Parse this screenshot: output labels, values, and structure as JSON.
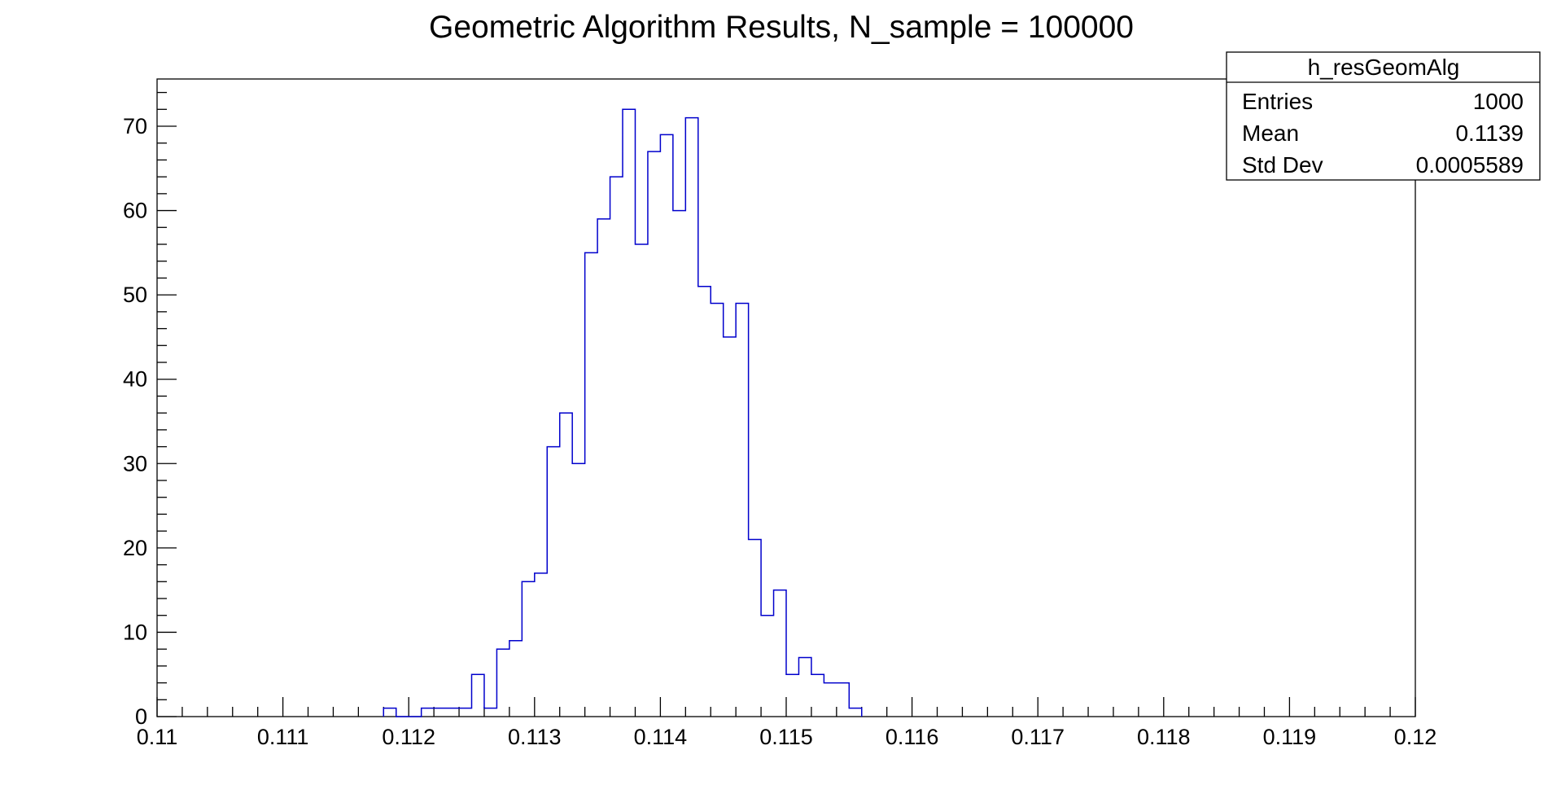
{
  "chart_data": {
    "type": "histogram",
    "title": "Geometric Algorithm Results, N_sample = 100000",
    "xlim": [
      0.11,
      0.12
    ],
    "ylim": [
      0,
      75.6
    ],
    "bin_width": 0.0001,
    "xticks": [
      "0.11",
      "0.111",
      "0.112",
      "0.113",
      "0.114",
      "0.115",
      "0.116",
      "0.117",
      "0.118",
      "0.119",
      "0.12"
    ],
    "yticks": [
      "0",
      "10",
      "20",
      "30",
      "40",
      "50",
      "60",
      "70"
    ],
    "bins": [
      {
        "x": 0.1118,
        "count": 1
      },
      {
        "x": 0.1119,
        "count": 0
      },
      {
        "x": 0.112,
        "count": 0
      },
      {
        "x": 0.1121,
        "count": 1
      },
      {
        "x": 0.1122,
        "count": 1
      },
      {
        "x": 0.1123,
        "count": 1
      },
      {
        "x": 0.1124,
        "count": 1
      },
      {
        "x": 0.1125,
        "count": 5
      },
      {
        "x": 0.1126,
        "count": 1
      },
      {
        "x": 0.1127,
        "count": 8
      },
      {
        "x": 0.1128,
        "count": 9
      },
      {
        "x": 0.1129,
        "count": 16
      },
      {
        "x": 0.113,
        "count": 17
      },
      {
        "x": 0.1131,
        "count": 32
      },
      {
        "x": 0.1132,
        "count": 36
      },
      {
        "x": 0.1133,
        "count": 30
      },
      {
        "x": 0.1134,
        "count": 55
      },
      {
        "x": 0.1135,
        "count": 59
      },
      {
        "x": 0.1136,
        "count": 64
      },
      {
        "x": 0.1137,
        "count": 72
      },
      {
        "x": 0.1138,
        "count": 56
      },
      {
        "x": 0.1139,
        "count": 67
      },
      {
        "x": 0.114,
        "count": 69
      },
      {
        "x": 0.1141,
        "count": 60
      },
      {
        "x": 0.1142,
        "count": 71
      },
      {
        "x": 0.1143,
        "count": 51
      },
      {
        "x": 0.1144,
        "count": 49
      },
      {
        "x": 0.1145,
        "count": 45
      },
      {
        "x": 0.1146,
        "count": 49
      },
      {
        "x": 0.1147,
        "count": 21
      },
      {
        "x": 0.1148,
        "count": 12
      },
      {
        "x": 0.1149,
        "count": 15
      },
      {
        "x": 0.115,
        "count": 5
      },
      {
        "x": 0.1151,
        "count": 7
      },
      {
        "x": 0.1152,
        "count": 5
      },
      {
        "x": 0.1153,
        "count": 4
      },
      {
        "x": 0.1154,
        "count": 4
      },
      {
        "x": 0.1155,
        "count": 1
      }
    ],
    "series_color": "#0000cc",
    "stats_box": {
      "name": "h_resGeomAlg",
      "placement": "top-right",
      "rows": [
        {
          "label": "Entries",
          "value": "1000"
        },
        {
          "label": "Mean",
          "value": "0.1139"
        },
        {
          "label": "Std Dev",
          "value": "0.0005589"
        }
      ]
    }
  }
}
